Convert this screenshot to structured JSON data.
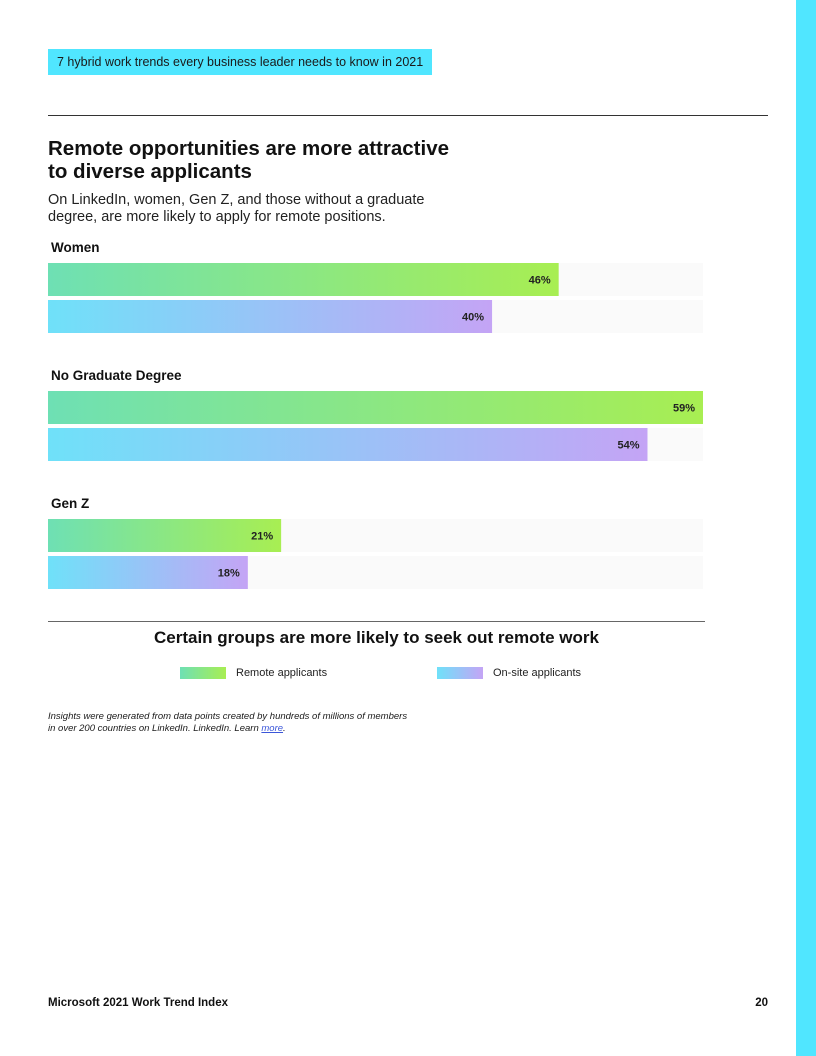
{
  "header": {
    "tag": "7 hybrid work trends every business leader needs to know in 2021"
  },
  "section": {
    "title": "Remote opportunities are more attractive to diverse applicants",
    "subtitle": "On LinkedIn, women, Gen Z, and those without a graduate degree, are more likely to apply for remote positions."
  },
  "chart_data": {
    "type": "bar",
    "orientation": "horizontal",
    "title": "Certain groups are more likely to seek out remote work",
    "categories": [
      "Women",
      "No Graduate Degree",
      "Gen Z"
    ],
    "series": [
      {
        "name": "Remote applicants",
        "values": [
          46,
          59,
          21
        ],
        "labels": [
          "46%",
          "59%",
          "21%"
        ]
      },
      {
        "name": "On-site applicants",
        "values": [
          40,
          54,
          18
        ],
        "labels": [
          "40%",
          "54%",
          "18%"
        ]
      }
    ],
    "xlim": [
      0,
      59
    ],
    "xlabel": "",
    "ylabel": "",
    "legend_position": "bottom",
    "grid": false
  },
  "colors": {
    "accent": "#50e6ff",
    "remote_start": "#6ee0b4",
    "remote_end": "#a8ee52",
    "onsite_start": "#6fe1f9",
    "onsite_end": "#c4a4f5"
  },
  "footnote": {
    "text": "Insights were generated from data points created by hundreds of millions of members in over 200 countries on LinkedIn. LinkedIn. Learn ",
    "link_text": "more",
    "suffix": "."
  },
  "footer": {
    "left": "Microsoft 2021 Work Trend Index",
    "page_number": "20"
  }
}
